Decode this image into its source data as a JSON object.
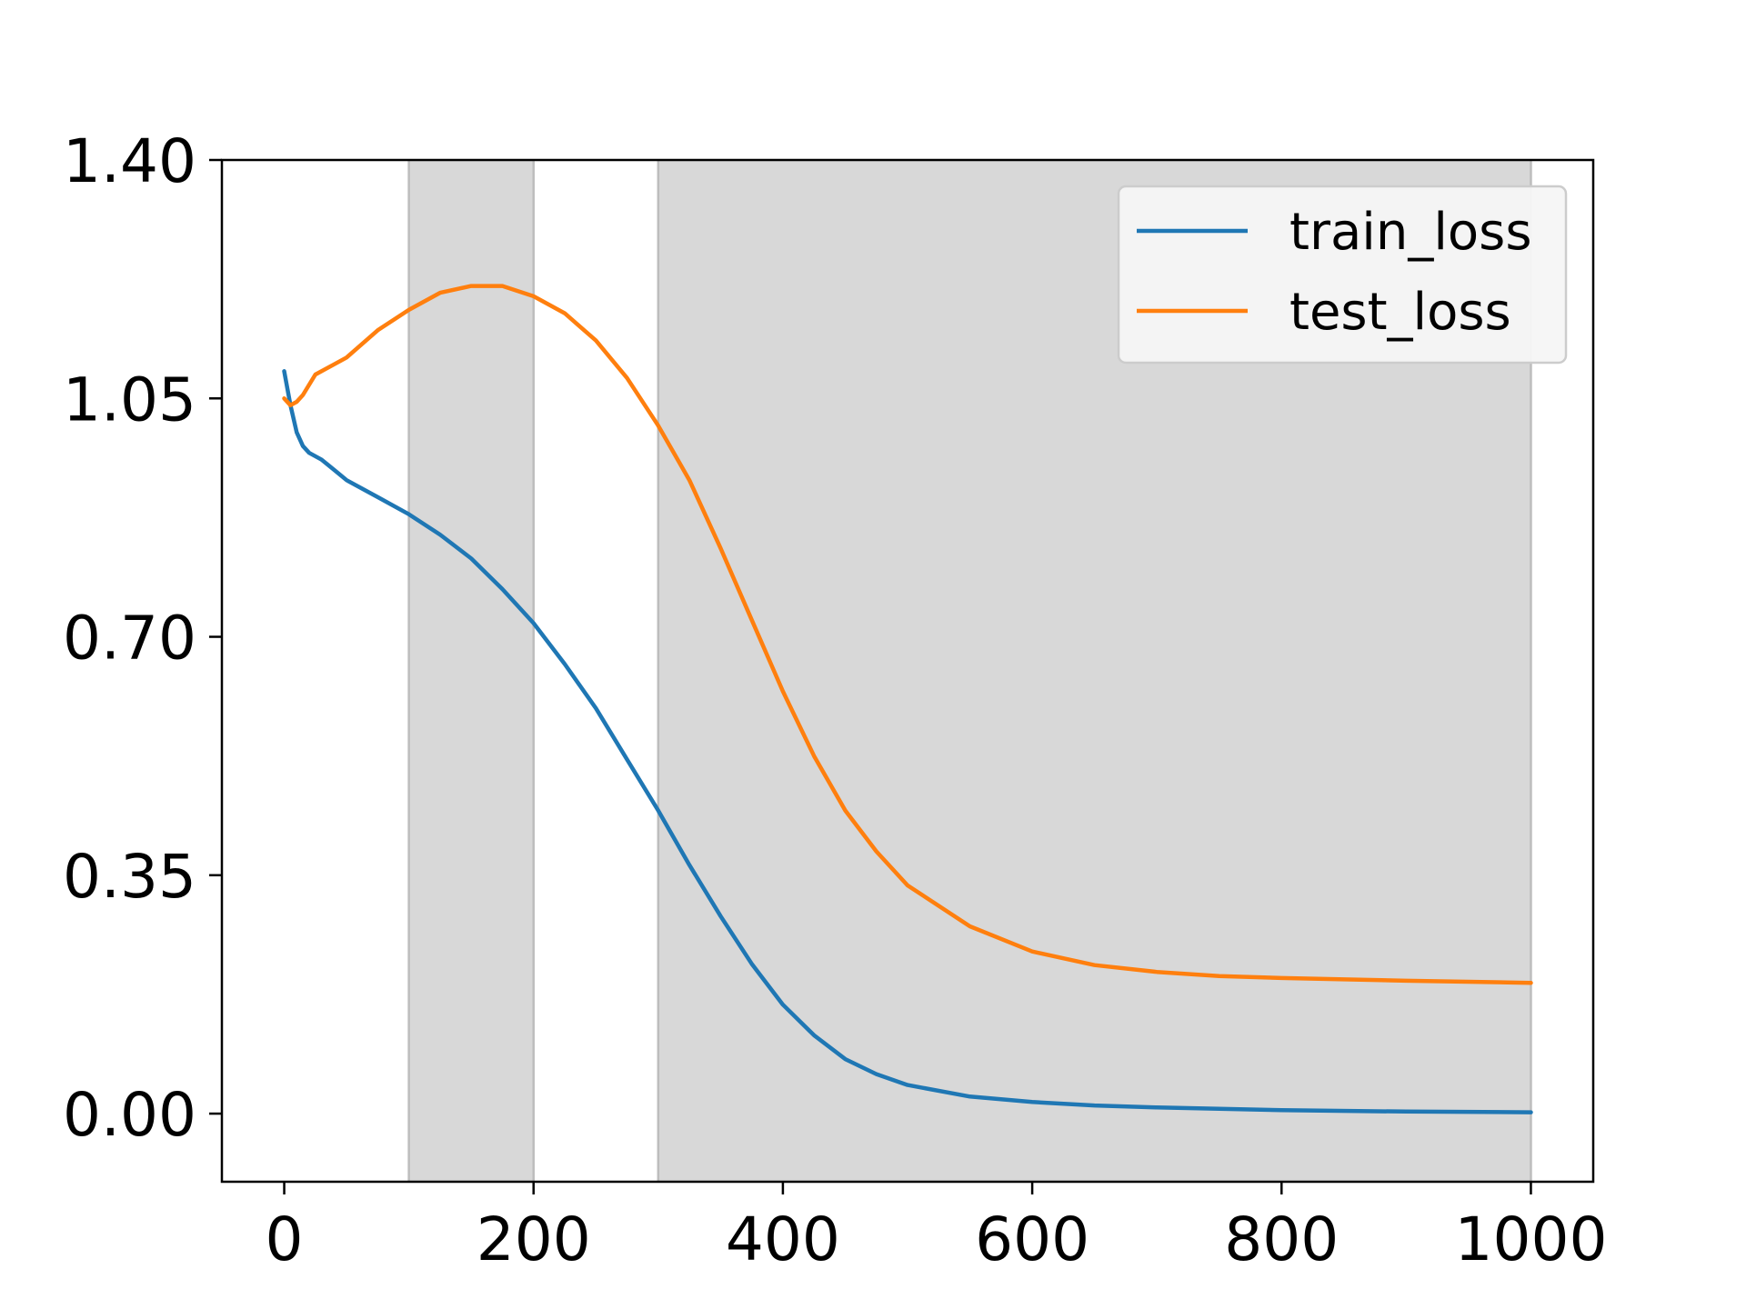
{
  "chart_data": {
    "type": "line",
    "title": "",
    "xlabel": "",
    "ylabel": "",
    "xlim": [
      -50,
      1050
    ],
    "ylim": [
      -0.1,
      1.4
    ],
    "x_ticks": [
      0,
      200,
      400,
      600,
      800,
      1000
    ],
    "y_ticks": [
      0.0,
      0.35,
      0.7,
      1.05,
      1.4
    ],
    "x_tick_labels": [
      "0",
      "200",
      "400",
      "600",
      "800",
      "1000"
    ],
    "y_tick_labels": [
      "0.00",
      "0.35",
      "0.70",
      "1.05",
      "1.40"
    ],
    "shaded_regions": [
      [
        100,
        200
      ],
      [
        300,
        1000
      ]
    ],
    "shade_color": "#d8d8d8",
    "legend_position": "top-right",
    "grid": false,
    "series": [
      {
        "name": "train_loss",
        "color": "#1f77b4",
        "x": [
          0,
          5,
          10,
          15,
          20,
          30,
          40,
          50,
          75,
          100,
          125,
          150,
          175,
          200,
          225,
          250,
          275,
          300,
          325,
          350,
          375,
          400,
          425,
          450,
          475,
          500,
          550,
          600,
          650,
          700,
          750,
          800,
          900,
          1000
        ],
        "y": [
          1.09,
          1.04,
          1.0,
          0.98,
          0.97,
          0.96,
          0.945,
          0.93,
          0.905,
          0.88,
          0.85,
          0.815,
          0.77,
          0.72,
          0.66,
          0.595,
          0.52,
          0.445,
          0.365,
          0.29,
          0.22,
          0.16,
          0.115,
          0.08,
          0.058,
          0.042,
          0.025,
          0.017,
          0.012,
          0.009,
          0.007,
          0.005,
          0.003,
          0.002
        ]
      },
      {
        "name": "test_loss",
        "color": "#ff7f0e",
        "x": [
          0,
          5,
          10,
          15,
          25,
          40,
          50,
          75,
          100,
          125,
          150,
          175,
          200,
          225,
          250,
          275,
          300,
          325,
          350,
          375,
          400,
          425,
          450,
          475,
          500,
          550,
          600,
          650,
          700,
          750,
          800,
          900,
          1000
        ],
        "y": [
          1.05,
          1.04,
          1.045,
          1.055,
          1.085,
          1.1,
          1.11,
          1.15,
          1.18,
          1.205,
          1.215,
          1.215,
          1.2,
          1.175,
          1.135,
          1.08,
          1.01,
          0.93,
          0.83,
          0.725,
          0.62,
          0.525,
          0.445,
          0.385,
          0.335,
          0.275,
          0.238,
          0.218,
          0.208,
          0.202,
          0.199,
          0.195,
          0.192
        ]
      }
    ]
  }
}
